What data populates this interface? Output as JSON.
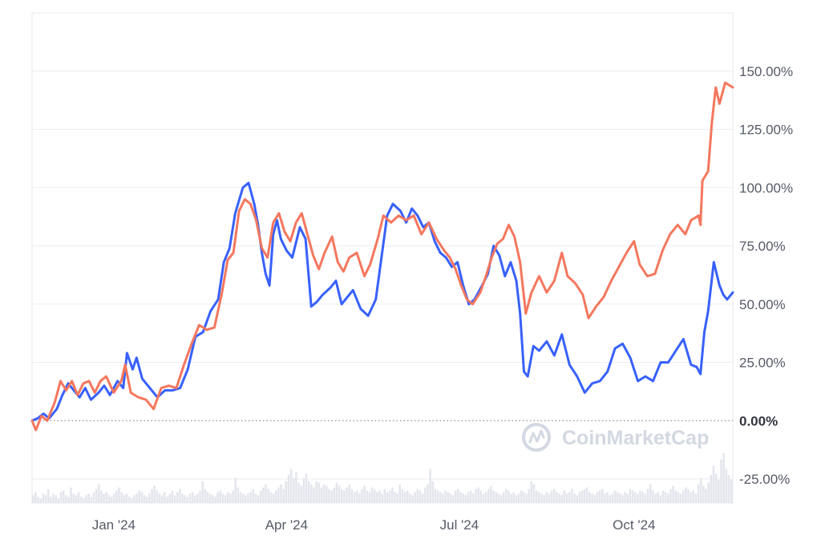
{
  "chart_data": {
    "type": "line",
    "title": "",
    "xlabel": "",
    "ylabel": "",
    "y_unit": "%",
    "ylim": [
      -25,
      175
    ],
    "y_ticks": [
      {
        "value": 150,
        "label": "150.00%"
      },
      {
        "value": 125,
        "label": "125.00%"
      },
      {
        "value": 100,
        "label": "100.00%"
      },
      {
        "value": 75,
        "label": "75.00%"
      },
      {
        "value": 50,
        "label": "50.00%"
      },
      {
        "value": 25,
        "label": "25.00%"
      },
      {
        "value": 0,
        "label": "0.00%"
      },
      {
        "value": -25,
        "label": "-25.00%"
      }
    ],
    "x_ticks": [
      {
        "date": "2024-01-01",
        "label": "Jan '24"
      },
      {
        "date": "2024-04-01",
        "label": "Apr '24"
      },
      {
        "date": "2024-07-01",
        "label": "Jul '24"
      },
      {
        "date": "2024-10-01",
        "label": "Oct '24"
      }
    ],
    "x_range": [
      "2023-11-19",
      "2024-11-22"
    ],
    "grid": "horizontal",
    "zero_line": "dotted",
    "legend": "none",
    "watermark": "CoinMarketCap",
    "colors": {
      "series_blue": "#3861fb",
      "series_orange": "#f4775e",
      "volume": "#e3e6ec",
      "grid": "#eceef2"
    },
    "series": [
      {
        "color": "#3861fb",
        "points": [
          [
            "2023-11-19",
            0
          ],
          [
            "2023-11-22",
            1
          ],
          [
            "2023-11-25",
            3
          ],
          [
            "2023-11-28",
            1
          ],
          [
            "2023-12-02",
            5
          ],
          [
            "2023-12-05",
            11
          ],
          [
            "2023-12-08",
            16
          ],
          [
            "2023-12-11",
            13
          ],
          [
            "2023-12-14",
            10
          ],
          [
            "2023-12-17",
            14
          ],
          [
            "2023-12-20",
            9
          ],
          [
            "2023-12-24",
            12
          ],
          [
            "2023-12-27",
            15
          ],
          [
            "2023-12-30",
            11
          ],
          [
            "2024-01-03",
            17
          ],
          [
            "2024-01-06",
            14
          ],
          [
            "2024-01-08",
            29
          ],
          [
            "2024-01-11",
            22
          ],
          [
            "2024-01-13",
            27
          ],
          [
            "2024-01-16",
            18
          ],
          [
            "2024-01-20",
            14
          ],
          [
            "2024-01-24",
            10
          ],
          [
            "2024-01-28",
            13
          ],
          [
            "2024-02-01",
            13
          ],
          [
            "2024-02-05",
            14
          ],
          [
            "2024-02-09",
            22
          ],
          [
            "2024-02-13",
            36
          ],
          [
            "2024-02-17",
            38
          ],
          [
            "2024-02-21",
            47
          ],
          [
            "2024-02-25",
            52
          ],
          [
            "2024-02-28",
            68
          ],
          [
            "2024-03-02",
            74
          ],
          [
            "2024-03-05",
            89
          ],
          [
            "2024-03-09",
            100
          ],
          [
            "2024-03-12",
            102
          ],
          [
            "2024-03-15",
            93
          ],
          [
            "2024-03-17",
            84
          ],
          [
            "2024-03-19",
            72
          ],
          [
            "2024-03-21",
            63
          ],
          [
            "2024-03-23",
            58
          ],
          [
            "2024-03-25",
            80
          ],
          [
            "2024-03-27",
            86
          ],
          [
            "2024-03-29",
            78
          ],
          [
            "2024-04-01",
            73
          ],
          [
            "2024-04-04",
            70
          ],
          [
            "2024-04-08",
            83
          ],
          [
            "2024-04-11",
            78
          ],
          [
            "2024-04-14",
            49
          ],
          [
            "2024-04-17",
            51
          ],
          [
            "2024-04-20",
            54
          ],
          [
            "2024-04-24",
            57
          ],
          [
            "2024-04-27",
            60
          ],
          [
            "2024-04-30",
            50
          ],
          [
            "2024-05-03",
            53
          ],
          [
            "2024-05-06",
            56
          ],
          [
            "2024-05-10",
            48
          ],
          [
            "2024-05-14",
            45
          ],
          [
            "2024-05-18",
            52
          ],
          [
            "2024-05-21",
            70
          ],
          [
            "2024-05-24",
            88
          ],
          [
            "2024-05-27",
            93
          ],
          [
            "2024-05-31",
            90
          ],
          [
            "2024-06-03",
            85
          ],
          [
            "2024-06-06",
            91
          ],
          [
            "2024-06-09",
            88
          ],
          [
            "2024-06-12",
            83
          ],
          [
            "2024-06-15",
            85
          ],
          [
            "2024-06-18",
            77
          ],
          [
            "2024-06-21",
            72
          ],
          [
            "2024-06-24",
            70
          ],
          [
            "2024-06-27",
            66
          ],
          [
            "2024-06-30",
            68
          ],
          [
            "2024-07-03",
            58
          ],
          [
            "2024-07-06",
            50
          ],
          [
            "2024-07-09",
            52
          ],
          [
            "2024-07-13",
            58
          ],
          [
            "2024-07-16",
            63
          ],
          [
            "2024-07-19",
            75
          ],
          [
            "2024-07-22",
            71
          ],
          [
            "2024-07-25",
            62
          ],
          [
            "2024-07-28",
            68
          ],
          [
            "2024-07-31",
            60
          ],
          [
            "2024-08-02",
            46
          ],
          [
            "2024-08-04",
            21
          ],
          [
            "2024-08-06",
            19
          ],
          [
            "2024-08-09",
            32
          ],
          [
            "2024-08-12",
            30
          ],
          [
            "2024-08-16",
            34
          ],
          [
            "2024-08-20",
            28
          ],
          [
            "2024-08-24",
            37
          ],
          [
            "2024-08-28",
            24
          ],
          [
            "2024-09-01",
            19
          ],
          [
            "2024-09-05",
            12
          ],
          [
            "2024-09-09",
            16
          ],
          [
            "2024-09-13",
            17
          ],
          [
            "2024-09-17",
            21
          ],
          [
            "2024-09-21",
            31
          ],
          [
            "2024-09-25",
            33
          ],
          [
            "2024-09-29",
            27
          ],
          [
            "2024-10-03",
            17
          ],
          [
            "2024-10-07",
            19
          ],
          [
            "2024-10-11",
            17
          ],
          [
            "2024-10-15",
            25
          ],
          [
            "2024-10-19",
            25
          ],
          [
            "2024-10-23",
            30
          ],
          [
            "2024-10-27",
            35
          ],
          [
            "2024-10-31",
            24
          ],
          [
            "2024-11-03",
            23
          ],
          [
            "2024-11-05",
            20
          ],
          [
            "2024-11-07",
            38
          ],
          [
            "2024-11-09",
            47
          ],
          [
            "2024-11-12",
            68
          ],
          [
            "2024-11-15",
            58
          ],
          [
            "2024-11-17",
            54
          ],
          [
            "2024-11-19",
            52
          ],
          [
            "2024-11-22",
            55
          ]
        ]
      },
      {
        "color": "#f4775e",
        "points": [
          [
            "2023-11-19",
            0
          ],
          [
            "2023-11-21",
            -4
          ],
          [
            "2023-11-24",
            2
          ],
          [
            "2023-11-27",
            0
          ],
          [
            "2023-12-01",
            8
          ],
          [
            "2023-12-04",
            17
          ],
          [
            "2023-12-07",
            13
          ],
          [
            "2023-12-10",
            17
          ],
          [
            "2023-12-13",
            11
          ],
          [
            "2023-12-16",
            16
          ],
          [
            "2023-12-19",
            17
          ],
          [
            "2023-12-22",
            12
          ],
          [
            "2023-12-25",
            17
          ],
          [
            "2023-12-28",
            19
          ],
          [
            "2024-01-01",
            12
          ],
          [
            "2024-01-05",
            17
          ],
          [
            "2024-01-07",
            24
          ],
          [
            "2024-01-10",
            12
          ],
          [
            "2024-01-14",
            10
          ],
          [
            "2024-01-18",
            9
          ],
          [
            "2024-01-22",
            5
          ],
          [
            "2024-01-26",
            14
          ],
          [
            "2024-01-30",
            15
          ],
          [
            "2024-02-03",
            14
          ],
          [
            "2024-02-07",
            24
          ],
          [
            "2024-02-11",
            33
          ],
          [
            "2024-02-15",
            41
          ],
          [
            "2024-02-19",
            39
          ],
          [
            "2024-02-23",
            40
          ],
          [
            "2024-02-27",
            55
          ],
          [
            "2024-03-01",
            69
          ],
          [
            "2024-03-04",
            72
          ],
          [
            "2024-03-07",
            90
          ],
          [
            "2024-03-10",
            95
          ],
          [
            "2024-03-13",
            93
          ],
          [
            "2024-03-16",
            86
          ],
          [
            "2024-03-19",
            74
          ],
          [
            "2024-03-22",
            70
          ],
          [
            "2024-03-25",
            85
          ],
          [
            "2024-03-28",
            89
          ],
          [
            "2024-03-31",
            81
          ],
          [
            "2024-04-03",
            77
          ],
          [
            "2024-04-06",
            85
          ],
          [
            "2024-04-09",
            89
          ],
          [
            "2024-04-12",
            80
          ],
          [
            "2024-04-15",
            71
          ],
          [
            "2024-04-18",
            65
          ],
          [
            "2024-04-21",
            72
          ],
          [
            "2024-04-25",
            79
          ],
          [
            "2024-04-28",
            68
          ],
          [
            "2024-05-01",
            64
          ],
          [
            "2024-05-04",
            70
          ],
          [
            "2024-05-08",
            72
          ],
          [
            "2024-05-12",
            62
          ],
          [
            "2024-05-15",
            67
          ],
          [
            "2024-05-19",
            78
          ],
          [
            "2024-05-22",
            88
          ],
          [
            "2024-05-26",
            85
          ],
          [
            "2024-05-30",
            88
          ],
          [
            "2024-06-03",
            86
          ],
          [
            "2024-06-07",
            88
          ],
          [
            "2024-06-11",
            80
          ],
          [
            "2024-06-15",
            85
          ],
          [
            "2024-06-19",
            78
          ],
          [
            "2024-06-23",
            73
          ],
          [
            "2024-06-26",
            70
          ],
          [
            "2024-06-29",
            65
          ],
          [
            "2024-07-02",
            58
          ],
          [
            "2024-07-05",
            52
          ],
          [
            "2024-07-08",
            50
          ],
          [
            "2024-07-12",
            55
          ],
          [
            "2024-07-15",
            62
          ],
          [
            "2024-07-18",
            70
          ],
          [
            "2024-07-21",
            76
          ],
          [
            "2024-07-24",
            78
          ],
          [
            "2024-07-27",
            84
          ],
          [
            "2024-07-30",
            79
          ],
          [
            "2024-08-02",
            68
          ],
          [
            "2024-08-05",
            46
          ],
          [
            "2024-08-08",
            55
          ],
          [
            "2024-08-12",
            62
          ],
          [
            "2024-08-16",
            55
          ],
          [
            "2024-08-20",
            60
          ],
          [
            "2024-08-24",
            72
          ],
          [
            "2024-08-27",
            62
          ],
          [
            "2024-08-31",
            59
          ],
          [
            "2024-09-04",
            54
          ],
          [
            "2024-09-07",
            44
          ],
          [
            "2024-09-11",
            49
          ],
          [
            "2024-09-15",
            53
          ],
          [
            "2024-09-19",
            60
          ],
          [
            "2024-09-23",
            66
          ],
          [
            "2024-09-27",
            72
          ],
          [
            "2024-10-01",
            77
          ],
          [
            "2024-10-04",
            67
          ],
          [
            "2024-10-08",
            62
          ],
          [
            "2024-10-12",
            63
          ],
          [
            "2024-10-16",
            73
          ],
          [
            "2024-10-20",
            80
          ],
          [
            "2024-10-24",
            84
          ],
          [
            "2024-10-28",
            80
          ],
          [
            "2024-10-31",
            86
          ],
          [
            "2024-11-04",
            88
          ],
          [
            "2024-11-05",
            84
          ],
          [
            "2024-11-06",
            103
          ],
          [
            "2024-11-09",
            107
          ],
          [
            "2024-11-11",
            128
          ],
          [
            "2024-11-13",
            143
          ],
          [
            "2024-11-15",
            136
          ],
          [
            "2024-11-18",
            145
          ],
          [
            "2024-11-22",
            143
          ]
        ]
      }
    ],
    "volume": [
      5,
      7,
      4,
      3,
      6,
      5,
      9,
      4,
      6,
      5,
      3,
      7,
      8,
      5,
      4,
      10,
      6,
      5,
      7,
      4,
      3,
      5,
      6,
      4,
      7,
      9,
      12,
      8,
      6,
      7,
      5,
      4,
      6,
      8,
      10,
      7,
      5,
      6,
      4,
      3,
      5,
      6,
      8,
      7,
      5,
      4,
      6,
      9,
      11,
      8,
      6,
      5,
      7,
      4,
      6,
      8,
      5,
      7,
      9,
      6,
      5,
      4,
      6,
      7,
      5,
      6,
      8,
      14,
      9,
      7,
      6,
      5,
      4,
      7,
      8,
      6,
      5,
      7,
      6,
      8,
      16,
      10,
      7,
      6,
      5,
      6,
      7,
      9,
      6,
      5,
      8,
      10,
      12,
      9,
      7,
      6,
      8,
      10,
      12,
      9,
      14,
      18,
      22,
      16,
      20,
      13,
      11,
      16,
      19,
      14,
      12,
      10,
      14,
      13,
      10,
      12,
      11,
      9,
      8,
      10,
      13,
      11,
      9,
      8,
      10,
      12,
      9,
      7,
      8,
      6,
      9,
      11,
      8,
      7,
      10,
      9,
      7,
      8,
      6,
      9,
      7,
      8,
      10,
      7,
      6,
      12,
      9,
      7,
      8,
      6,
      5,
      7,
      9,
      8,
      6,
      10,
      12,
      22,
      14,
      9,
      8,
      7,
      6,
      8,
      7,
      6,
      5,
      8,
      9,
      7,
      6,
      5,
      7,
      8,
      6,
      9,
      10,
      8,
      6,
      7,
      9,
      11,
      8,
      7,
      6,
      5,
      7,
      9,
      8,
      6,
      7,
      5,
      6,
      8,
      7,
      6,
      9,
      14,
      12,
      8,
      7,
      6,
      5,
      7,
      6,
      8,
      9,
      7,
      6,
      5,
      8,
      6,
      7,
      9,
      6,
      5,
      7,
      8,
      9,
      10,
      7,
      6,
      5,
      7,
      8,
      9,
      6,
      7,
      5,
      6,
      8,
      7,
      6,
      5,
      7,
      6,
      9,
      8,
      7,
      6,
      8,
      7,
      6,
      9,
      12,
      8,
      6,
      7,
      5,
      8,
      7,
      6,
      9,
      11,
      8,
      7,
      6,
      8,
      10,
      9,
      7,
      8,
      6,
      12,
      16,
      11,
      9,
      13,
      18,
      24,
      19,
      15,
      28,
      32,
      22,
      18,
      15
    ]
  }
}
